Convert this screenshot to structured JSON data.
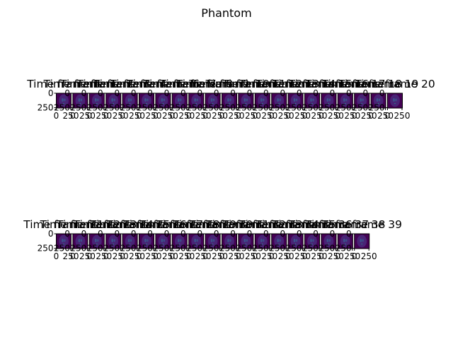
{
  "chart_data": {
    "type": "heatmap",
    "title": "Phantom",
    "colormap": "viridis",
    "panel_title_prefix": "Time frame",
    "image_size": [
      256,
      256
    ],
    "ytick_labels": [
      "0",
      "250"
    ],
    "xtick_labels": [
      "0",
      "250"
    ],
    "rows": [
      {
        "frames": [
          0,
          1,
          2,
          3,
          4,
          5,
          6,
          7,
          8,
          9,
          10,
          11,
          12,
          13,
          14,
          15,
          16,
          17,
          18,
          19,
          20
        ]
      },
      {
        "frames": [
          21,
          22,
          23,
          24,
          25,
          26,
          27,
          28,
          29,
          30,
          31,
          32,
          33,
          34,
          35,
          36,
          37,
          38,
          39
        ]
      }
    ],
    "colors": {
      "background": "#440154",
      "ellipse": "#482475",
      "inner": "#3b528b"
    }
  }
}
